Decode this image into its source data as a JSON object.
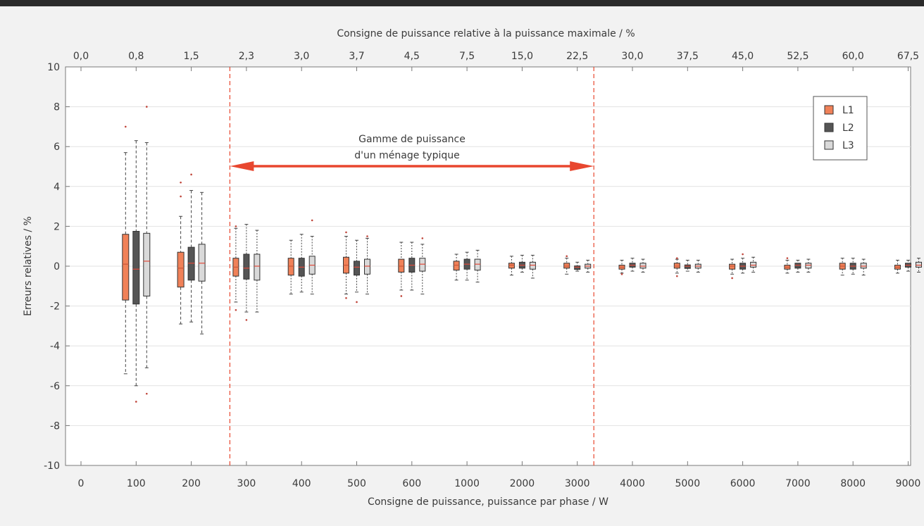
{
  "chart_data": {
    "type": "box",
    "title": "",
    "top_axis_label": "Consigne de puissance relative à la puissance maximale / %",
    "xlabel": "Consigne de puissance, puissance par phase / W",
    "ylabel": "Erreurs relatives / %",
    "ylim": [
      -10,
      10
    ],
    "yticks": [
      "10",
      "8",
      "6",
      "4",
      "2",
      "0",
      "-2",
      "-4",
      "-6",
      "-8",
      "-10"
    ],
    "categories": [
      "0",
      "100",
      "200",
      "300",
      "400",
      "500",
      "600",
      "1000",
      "2000",
      "3000",
      "4000",
      "5000",
      "6000",
      "7000",
      "8000",
      "9000"
    ],
    "top_categories": [
      "0,0",
      "0,8",
      "1,5",
      "2,3",
      "3,0",
      "3,7",
      "4,5",
      "7,5",
      "15,0",
      "22,5",
      "30,0",
      "37,5",
      "45,0",
      "52,5",
      "60,0",
      "67,5"
    ],
    "legend": {
      "position": "top-right",
      "entries": [
        {
          "name": "L1",
          "color": "#f08158"
        },
        {
          "name": "L2",
          "color": "#555555"
        },
        {
          "name": "L3",
          "color": "#d9d9d9"
        }
      ]
    },
    "annotation": {
      "line1": "Gamme de puissance",
      "line2": "d'un ménage typique",
      "from_category": "300",
      "to_category": "3000",
      "color": "#e8472f"
    },
    "series": [
      {
        "name": "L1",
        "boxes": [
          null,
          {
            "min": -5.4,
            "q1": -1.7,
            "median": 0.1,
            "q3": 1.6,
            "max": 5.7,
            "outliers": [
              7.0
            ]
          },
          {
            "min": -2.9,
            "q1": -1.05,
            "median": -0.1,
            "q3": 0.7,
            "max": 2.5,
            "outliers": [
              4.2,
              3.5
            ]
          },
          {
            "min": -1.8,
            "q1": -0.5,
            "median": -0.05,
            "q3": 0.4,
            "max": 1.9,
            "outliers": [
              -2.2,
              2.0
            ]
          },
          {
            "min": -1.4,
            "q1": -0.45,
            "median": 0.0,
            "q3": 0.4,
            "max": 1.3,
            "outliers": []
          },
          {
            "min": -1.4,
            "q1": -0.35,
            "median": 0.05,
            "q3": 0.45,
            "max": 1.5,
            "outliers": [
              1.7,
              -1.6
            ]
          },
          {
            "min": -1.2,
            "q1": -0.3,
            "median": 0.0,
            "q3": 0.35,
            "max": 1.2,
            "outliers": [
              -1.5
            ]
          },
          {
            "min": -0.7,
            "q1": -0.2,
            "median": 0.05,
            "q3": 0.25,
            "max": 0.6,
            "outliers": []
          },
          {
            "min": -0.45,
            "q1": -0.1,
            "median": 0.05,
            "q3": 0.15,
            "max": 0.5,
            "outliers": []
          },
          {
            "min": -0.4,
            "q1": -0.1,
            "median": 0.0,
            "q3": 0.15,
            "max": 0.4,
            "outliers": [
              0.5
            ]
          },
          {
            "min": -0.35,
            "q1": -0.15,
            "median": -0.05,
            "q3": 0.05,
            "max": 0.3,
            "outliers": [
              -0.4
            ]
          },
          {
            "min": -0.35,
            "q1": -0.1,
            "median": 0.0,
            "q3": 0.15,
            "max": 0.35,
            "outliers": [
              -0.5,
              0.4
            ]
          },
          {
            "min": -0.4,
            "q1": -0.15,
            "median": 0.0,
            "q3": 0.1,
            "max": 0.35,
            "outliers": [
              -0.6
            ]
          },
          {
            "min": -0.35,
            "q1": -0.15,
            "median": -0.05,
            "q3": 0.05,
            "max": 0.3,
            "outliers": [
              0.4
            ]
          },
          {
            "min": -0.45,
            "q1": -0.15,
            "median": 0.0,
            "q3": 0.15,
            "max": 0.4,
            "outliers": []
          },
          {
            "min": -0.35,
            "q1": -0.15,
            "median": -0.05,
            "q3": 0.05,
            "max": 0.3,
            "outliers": []
          }
        ]
      },
      {
        "name": "L2",
        "boxes": [
          null,
          {
            "min": -6.0,
            "q1": -1.9,
            "median": -0.15,
            "q3": 1.75,
            "max": 6.3,
            "outliers": [
              -6.8
            ]
          },
          {
            "min": -2.8,
            "q1": -0.7,
            "median": 0.15,
            "q3": 0.95,
            "max": 3.8,
            "outliers": [
              4.6
            ]
          },
          {
            "min": -2.3,
            "q1": -0.65,
            "median": -0.1,
            "q3": 0.6,
            "max": 2.1,
            "outliers": [
              -2.7
            ]
          },
          {
            "min": -1.3,
            "q1": -0.5,
            "median": -0.05,
            "q3": 0.4,
            "max": 1.6,
            "outliers": []
          },
          {
            "min": -1.3,
            "q1": -0.45,
            "median": -0.05,
            "q3": 0.25,
            "max": 1.3,
            "outliers": [
              -1.8
            ]
          },
          {
            "min": -1.2,
            "q1": -0.3,
            "median": 0.05,
            "q3": 0.4,
            "max": 1.2,
            "outliers": []
          },
          {
            "min": -0.7,
            "q1": -0.15,
            "median": 0.1,
            "q3": 0.35,
            "max": 0.7,
            "outliers": []
          },
          {
            "min": -0.3,
            "q1": -0.1,
            "median": 0.05,
            "q3": 0.2,
            "max": 0.55,
            "outliers": []
          },
          {
            "min": -0.25,
            "q1": -0.15,
            "median": -0.05,
            "q3": 0.0,
            "max": 0.2,
            "outliers": []
          },
          {
            "min": -0.25,
            "q1": -0.05,
            "median": 0.05,
            "q3": 0.15,
            "max": 0.4,
            "outliers": []
          },
          {
            "min": -0.25,
            "q1": -0.1,
            "median": 0.0,
            "q3": 0.05,
            "max": 0.3,
            "outliers": []
          },
          {
            "min": -0.35,
            "q1": -0.15,
            "median": 0.0,
            "q3": 0.15,
            "max": 0.4,
            "outliers": [
              0.6
            ]
          },
          {
            "min": -0.3,
            "q1": -0.1,
            "median": 0.05,
            "q3": 0.15,
            "max": 0.3,
            "outliers": []
          },
          {
            "min": -0.4,
            "q1": -0.15,
            "median": 0.0,
            "q3": 0.15,
            "max": 0.4,
            "outliers": []
          },
          {
            "min": -0.25,
            "q1": -0.05,
            "median": 0.05,
            "q3": 0.15,
            "max": 0.3,
            "outliers": []
          }
        ]
      },
      {
        "name": "L3",
        "boxes": [
          null,
          {
            "min": -5.1,
            "q1": -1.5,
            "median": 0.25,
            "q3": 1.65,
            "max": 6.2,
            "outliers": [
              8.0,
              -6.4
            ]
          },
          {
            "min": -3.4,
            "q1": -0.75,
            "median": 0.15,
            "q3": 1.1,
            "max": 3.7,
            "outliers": []
          },
          {
            "min": -2.3,
            "q1": -0.7,
            "median": 0.0,
            "q3": 0.6,
            "max": 1.8,
            "outliers": []
          },
          {
            "min": -1.4,
            "q1": -0.4,
            "median": 0.05,
            "q3": 0.5,
            "max": 1.5,
            "outliers": [
              2.3
            ]
          },
          {
            "min": -1.4,
            "q1": -0.4,
            "median": 0.0,
            "q3": 0.35,
            "max": 1.4,
            "outliers": [
              1.5
            ]
          },
          {
            "min": -1.4,
            "q1": -0.25,
            "median": 0.1,
            "q3": 0.4,
            "max": 1.1,
            "outliers": [
              1.4
            ]
          },
          {
            "min": -0.8,
            "q1": -0.2,
            "median": 0.1,
            "q3": 0.35,
            "max": 0.8,
            "outliers": []
          },
          {
            "min": -0.6,
            "q1": -0.15,
            "median": 0.05,
            "q3": 0.2,
            "max": 0.55,
            "outliers": []
          },
          {
            "min": -0.3,
            "q1": -0.1,
            "median": 0.0,
            "q3": 0.1,
            "max": 0.3,
            "outliers": []
          },
          {
            "min": -0.3,
            "q1": -0.1,
            "median": 0.0,
            "q3": 0.15,
            "max": 0.35,
            "outliers": []
          },
          {
            "min": -0.3,
            "q1": -0.1,
            "median": 0.0,
            "q3": 0.1,
            "max": 0.3,
            "outliers": []
          },
          {
            "min": -0.3,
            "q1": -0.05,
            "median": 0.05,
            "q3": 0.2,
            "max": 0.45,
            "outliers": []
          },
          {
            "min": -0.3,
            "q1": -0.1,
            "median": 0.05,
            "q3": 0.15,
            "max": 0.35,
            "outliers": []
          },
          {
            "min": -0.45,
            "q1": -0.1,
            "median": 0.0,
            "q3": 0.15,
            "max": 0.35,
            "outliers": []
          },
          {
            "min": -0.3,
            "q1": -0.05,
            "median": 0.05,
            "q3": 0.2,
            "max": 0.4,
            "outliers": []
          }
        ]
      }
    ]
  }
}
